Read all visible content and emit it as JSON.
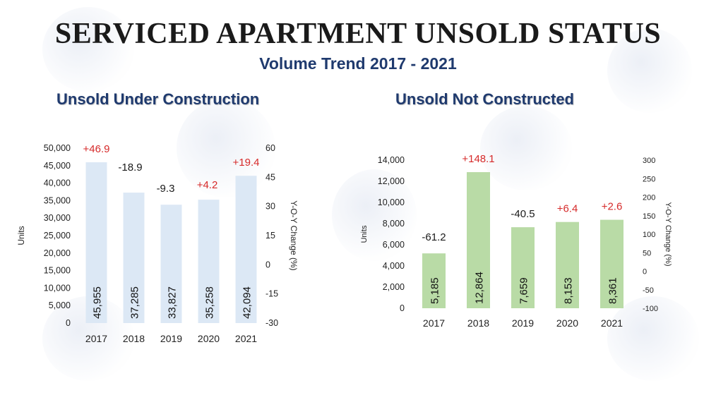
{
  "header": {
    "title": "SERVICED APARTMENT UNSOLD STATUS",
    "subtitle": "Volume Trend 2017 - 2021"
  },
  "colors": {
    "title": "#1a1a1a",
    "subtitle": "#1f3a6e",
    "left_bar": "#dce8f5",
    "right_bar": "#b9dba6",
    "negative_change": "#1a1a1a",
    "positive_change": "#d62a2a"
  },
  "chart_data": [
    {
      "type": "bar",
      "title": "Unsold Under Construction",
      "categories": [
        "2017",
        "2018",
        "2019",
        "2020",
        "2021"
      ],
      "values": [
        45955,
        37285,
        33827,
        35258,
        42094
      ],
      "value_labels": [
        "45,955",
        "37,285",
        "33,827",
        "35,258",
        "42,094"
      ],
      "yoy_change": [
        46.9,
        -18.9,
        -9.3,
        4.2,
        19.4
      ],
      "yoy_labels": [
        "+46.9",
        "-18.9",
        "-9.3",
        "+4.2",
        "+19.4"
      ],
      "ylabel": "Units",
      "y2label": "Y-O-Y Change (%)",
      "ylim": [
        0,
        50000
      ],
      "y_ticks": [
        0,
        5000,
        10000,
        15000,
        20000,
        25000,
        30000,
        35000,
        40000,
        45000,
        50000
      ],
      "y_tick_labels": [
        "0",
        "5,000",
        "10,000",
        "15,000",
        "20,000",
        "25,000",
        "30,000",
        "35,000",
        "40,000",
        "45,000",
        "50,000"
      ],
      "y2lim": [
        -30,
        60
      ],
      "y2_ticks": [
        -30,
        -15,
        0,
        15,
        30,
        45,
        60
      ],
      "y2_tick_labels": [
        "-30",
        "-15",
        "0",
        "15",
        "30",
        "45",
        "60"
      ],
      "grid": false
    },
    {
      "type": "bar",
      "title": "Unsold Not Constructed",
      "categories": [
        "2017",
        "2018",
        "2019",
        "2020",
        "2021"
      ],
      "values": [
        5185,
        12864,
        7659,
        8153,
        8361
      ],
      "value_labels": [
        "5,185",
        "12,864",
        "7,659",
        "8,153",
        "8,361"
      ],
      "yoy_change": [
        -61.2,
        148.1,
        -40.5,
        6.4,
        2.6
      ],
      "yoy_labels": [
        "-61.2",
        "+148.1",
        "-40.5",
        "+6.4",
        "+2.6"
      ],
      "ylabel": "Units",
      "y2label": "Y-O-Y Change (%)",
      "ylim": [
        0,
        14000
      ],
      "y_ticks": [
        0,
        2000,
        4000,
        6000,
        8000,
        10000,
        12000,
        14000
      ],
      "y_tick_labels": [
        "0",
        "2,000",
        "4,000",
        "6,000",
        "8,000",
        "10,000",
        "12,000",
        "14,000"
      ],
      "y2lim": [
        -100,
        300
      ],
      "y2_ticks": [
        -100,
        -50,
        0,
        50,
        100,
        150,
        200,
        250,
        300
      ],
      "y2_tick_labels": [
        "-100",
        "-50",
        "0",
        "50",
        "100",
        "150",
        "200",
        "250",
        "300"
      ],
      "grid": false
    }
  ]
}
